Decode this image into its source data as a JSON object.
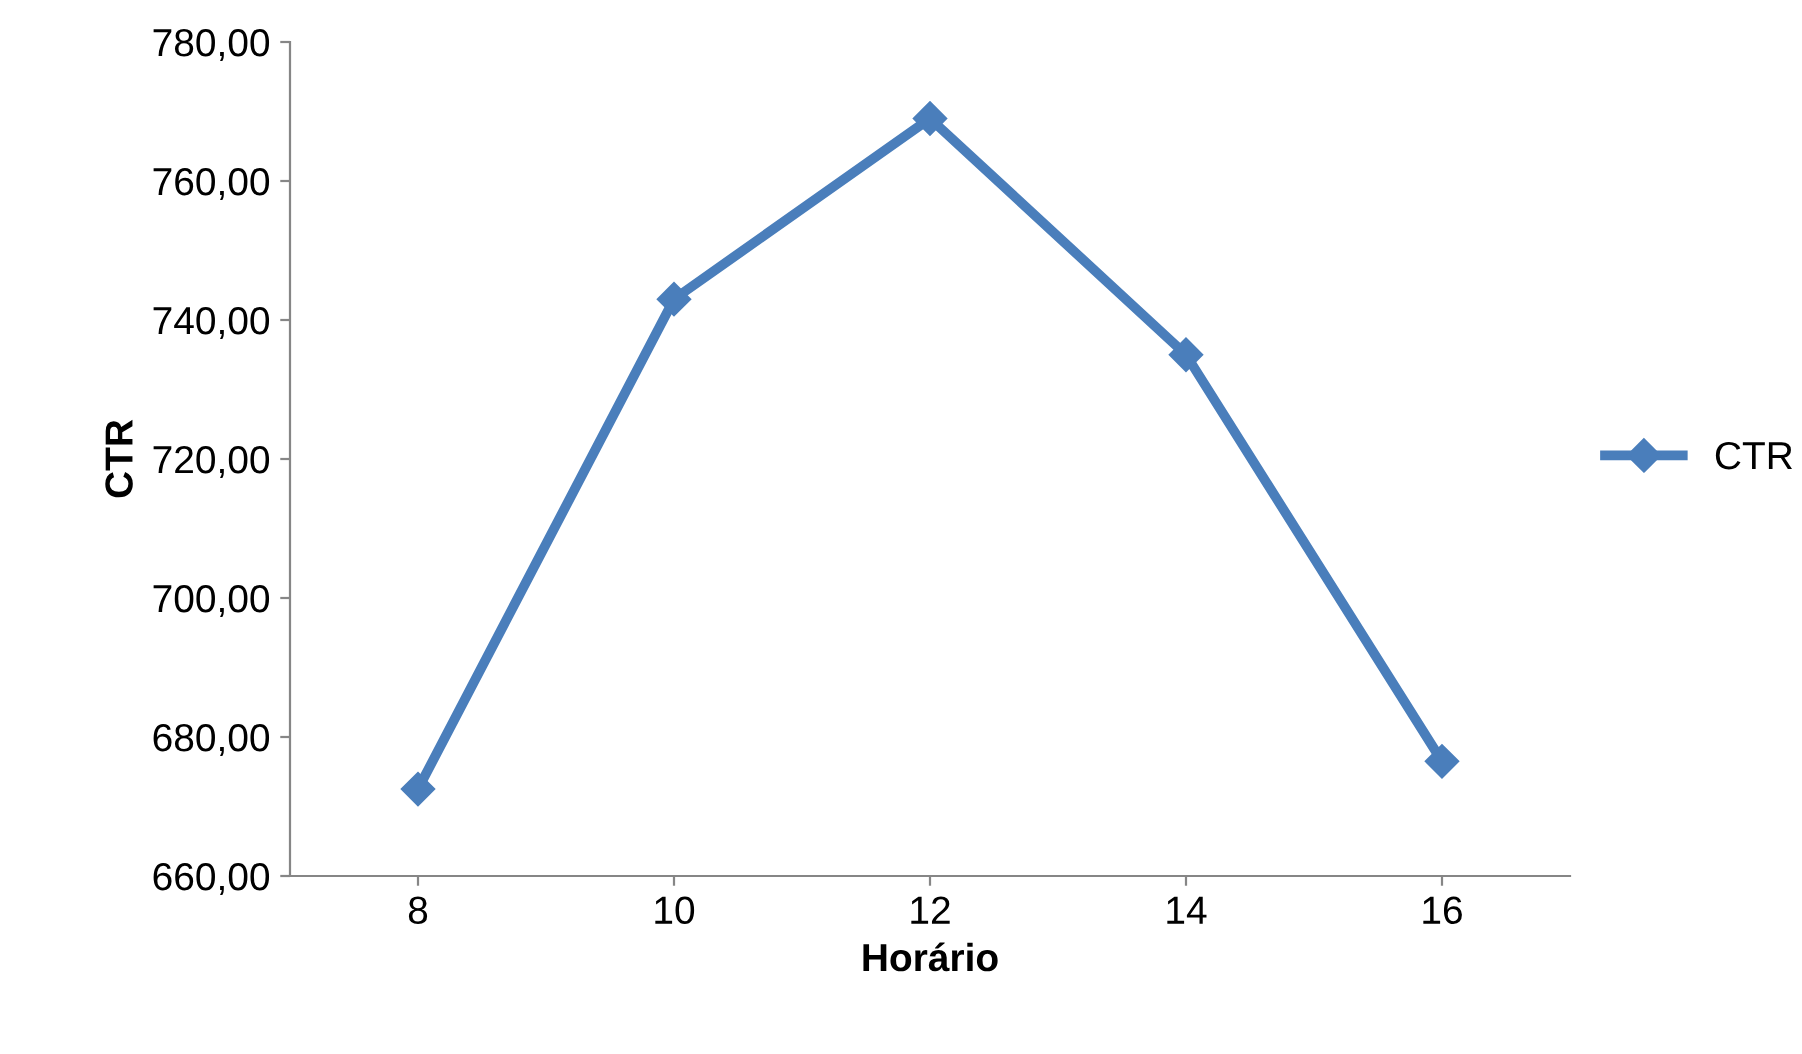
{
  "chart_data": {
    "type": "line",
    "xlabel": "Horário",
    "ylabel": "CTR",
    "categories": [
      "8",
      "10",
      "12",
      "14",
      "16"
    ],
    "series": [
      {
        "name": "CTR",
        "color": "#4a7ebb",
        "values": [
          672.5,
          743,
          769,
          735,
          676.5
        ]
      }
    ],
    "ylim": [
      660,
      780
    ],
    "yticks": [
      {
        "value": 660,
        "label": "660,00"
      },
      {
        "value": 680,
        "label": "680,00"
      },
      {
        "value": 700,
        "label": "700,00"
      },
      {
        "value": 720,
        "label": "720,00"
      },
      {
        "value": 740,
        "label": "740,00"
      },
      {
        "value": 760,
        "label": "760,00"
      },
      {
        "value": 780,
        "label": "780,00"
      }
    ],
    "marker": "diamond",
    "line_style": "solid",
    "legend": "right",
    "grid": false
  }
}
